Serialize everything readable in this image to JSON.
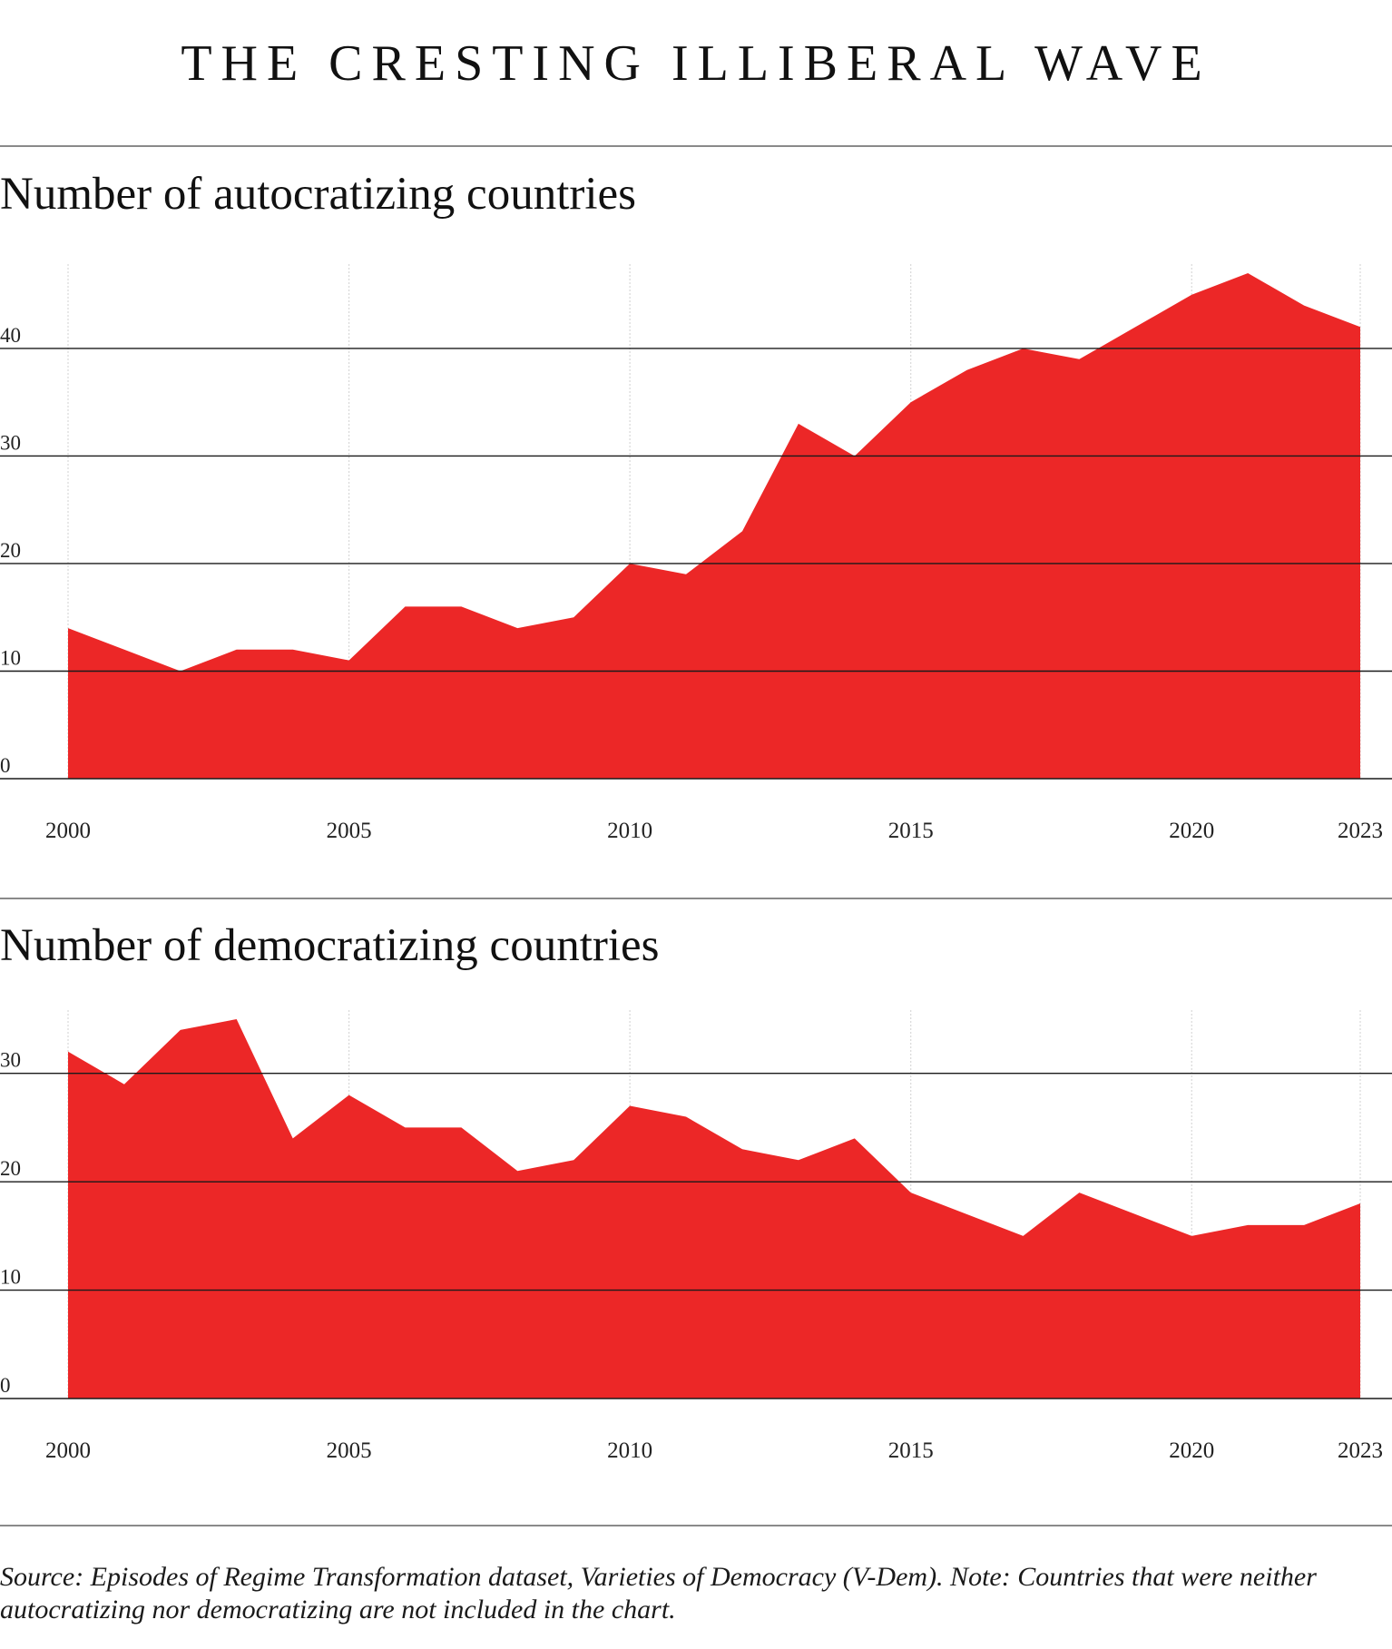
{
  "title": "THE CRESTING ILLIBERAL WAVE",
  "source_note": "Source: Episodes of Regime Transformation dataset, Varieties of Democracy (V-Dem). Note: Countries that were neither autocratizing nor democratizing are not included in the chart.",
  "colors": {
    "fill": "#EC2727",
    "gridline": "#1a1a1a",
    "year_gridline": "#d8d8d8",
    "rule": "#8a8a8a"
  },
  "chart_data": [
    {
      "type": "area",
      "title": "Number of autocratizing countries",
      "x": [
        2000,
        2001,
        2002,
        2003,
        2004,
        2005,
        2006,
        2007,
        2008,
        2009,
        2010,
        2011,
        2012,
        2013,
        2014,
        2015,
        2016,
        2017,
        2018,
        2019,
        2020,
        2021,
        2022,
        2023
      ],
      "series": [
        {
          "values": [
            14,
            12,
            10,
            12,
            12,
            11,
            16,
            16,
            14,
            15,
            20,
            19,
            23,
            33,
            30,
            35,
            38,
            40,
            39,
            42,
            45,
            47,
            44,
            42
          ]
        }
      ],
      "x_ticks": [
        "2000",
        "2005",
        "2010",
        "2015",
        "2020",
        "2023"
      ],
      "y_ticks": [
        "0",
        "10",
        "20",
        "30",
        "40"
      ],
      "xlim": [
        2000,
        2023
      ],
      "ylim": [
        0,
        47
      ],
      "grid": true
    },
    {
      "type": "area",
      "title": "Number of democratizing countries",
      "x": [
        2000,
        2001,
        2002,
        2003,
        2004,
        2005,
        2006,
        2007,
        2008,
        2009,
        2010,
        2011,
        2012,
        2013,
        2014,
        2015,
        2016,
        2017,
        2018,
        2019,
        2020,
        2021,
        2022,
        2023
      ],
      "series": [
        {
          "values": [
            32,
            29,
            34,
            35,
            24,
            28,
            25,
            25,
            21,
            22,
            27,
            26,
            23,
            22,
            24,
            19,
            17,
            15,
            19,
            17,
            15,
            16,
            16,
            18
          ]
        }
      ],
      "x_ticks": [
        "2000",
        "2005",
        "2010",
        "2015",
        "2020",
        "2023"
      ],
      "y_ticks": [
        "0",
        "10",
        "20",
        "30"
      ],
      "xlim": [
        2000,
        2023
      ],
      "ylim": [
        0,
        35
      ],
      "grid": true
    }
  ]
}
